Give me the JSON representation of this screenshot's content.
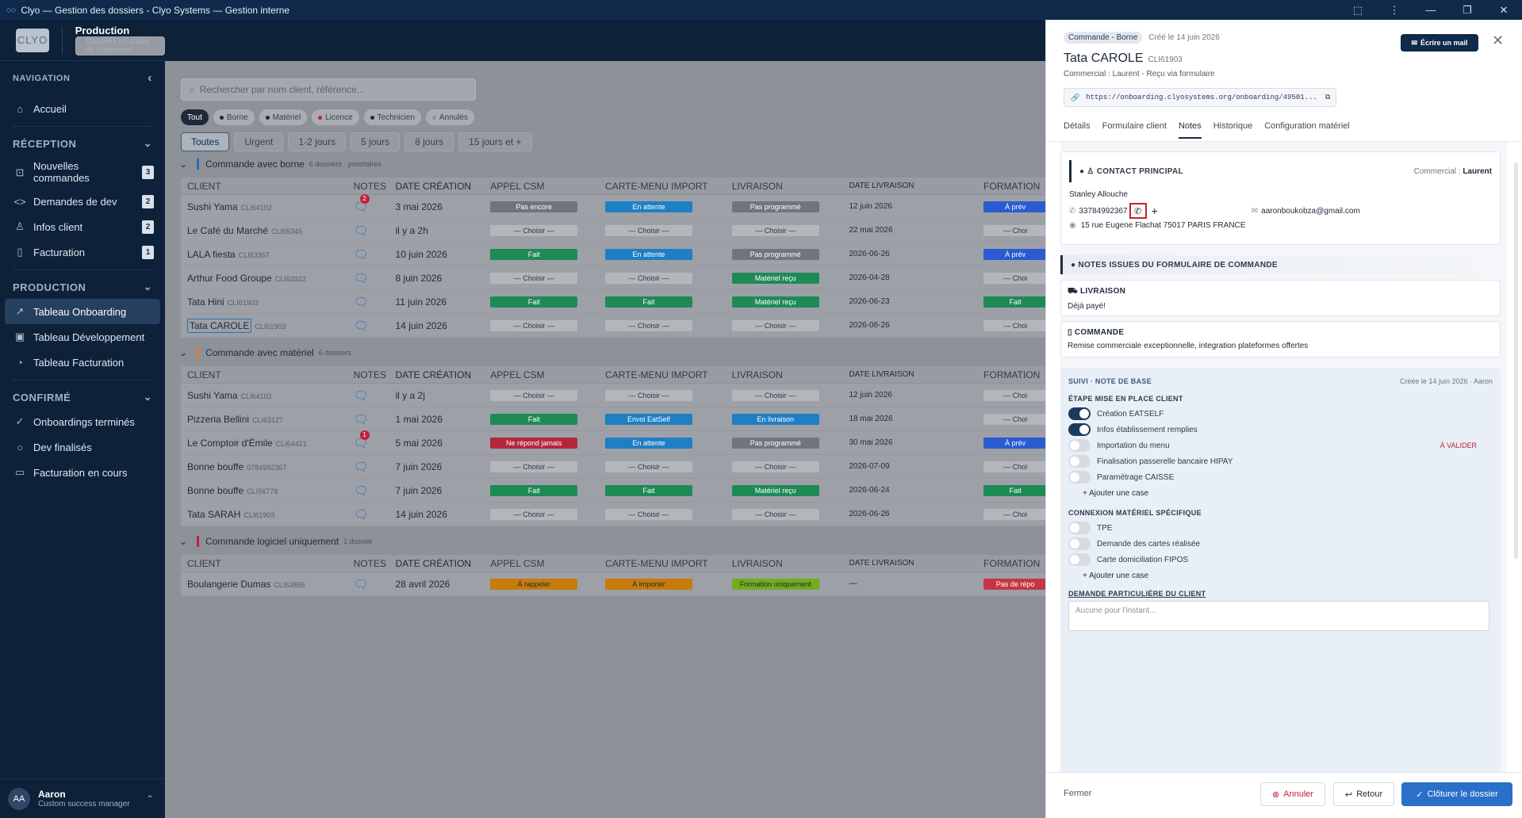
{
  "window": {
    "title": "Clyo — Gestion des dossiers - Clyo Systems — Gestion interne"
  },
  "brand": {
    "logo": "CLYO",
    "title": "Production",
    "subtitle": "Dossiers en cours de traitement"
  },
  "sidebar": {
    "nav_label": "NAVIGATION",
    "home": "Accueil",
    "sections": [
      {
        "label": "RÉCEPTION",
        "items": [
          {
            "label": "Nouvelles commandes",
            "badge": "3"
          },
          {
            "label": "Demandes de dev",
            "badge": "2"
          },
          {
            "label": "Infos client",
            "badge": "2"
          },
          {
            "label": "Facturation",
            "badge": "1"
          }
        ]
      },
      {
        "label": "PRODUCTION",
        "items": [
          {
            "label": "Tableau Onboarding"
          },
          {
            "label": "Tableau Développement"
          },
          {
            "label": "Tableau Facturation"
          }
        ]
      },
      {
        "label": "CONFIRMÉ",
        "items": [
          {
            "label": "Onboardings terminés"
          },
          {
            "label": "Dev finalisés"
          },
          {
            "label": "Facturation en cours"
          }
        ]
      }
    ],
    "user": {
      "initials": "AA",
      "name": "Aaron",
      "role": "Custom success manager"
    }
  },
  "search": {
    "placeholder": "Rechercher par nom client, référence..."
  },
  "chips": [
    "Tout",
    "Borne",
    "Matériel",
    "Licence",
    "Technicien",
    "Annulés"
  ],
  "chip_colors": [
    "#1e2a3a",
    "#1e2a3a",
    "#1e2a3a",
    "#c3203c",
    "#1e2a3a",
    "#8a9099"
  ],
  "period_tabs": [
    "Toutes",
    "Urgent",
    "1-2 jours",
    "5 jours",
    "8 jours",
    "15 jours et +"
  ],
  "columns": [
    "CLIENT",
    "NOTES",
    "DATE CRÉATION",
    "APPEL CSM",
    "CARTE-MENU IMPORT",
    "LIVRAISON",
    "DATE LIVRAISON",
    "FORMATION"
  ],
  "groups": [
    {
      "title": "Commande avec borne",
      "sub": "6 dossiers · prioritaires",
      "color": "#2b6cb3",
      "rows": [
        {
          "name": "Sushi Yama",
          "id": "CLI64102",
          "notes": "2",
          "date": "3 mai 2026",
          "csm": "Pas encore",
          "carte": "En attente",
          "liv": "Pas programmé",
          "dliv": "12 juin 2026",
          "form": "À prév"
        },
        {
          "name": "Le Café du Marché",
          "id": "CLI65345",
          "notes": "",
          "date": "il y a 2h",
          "csm": "— Choisir —",
          "carte": "— Choisir —",
          "liv": "— Choisir —",
          "dliv": "22 mai 2026",
          "form": "— Choi"
        },
        {
          "name": "LALA fiesta",
          "id": "CLI53357",
          "notes": "",
          "date": "10 juin 2026",
          "csm": "Fait",
          "carte": "En attente",
          "liv": "Pas programmé",
          "dliv": "2026-06-26",
          "form": "À prév"
        },
        {
          "name": "Arthur Food Groupe",
          "id": "CLI62922",
          "notes": "",
          "date": "8 juin 2026",
          "csm": "— Choisir —",
          "carte": "— Choisir —",
          "liv": "Matériel reçu",
          "dliv": "2026-04-28",
          "form": "— Choi"
        },
        {
          "name": "Tata Hini",
          "id": "CLI61903",
          "notes": "",
          "date": "11 juin 2026",
          "csm": "Fait",
          "carte": "Fait",
          "liv": "Matériel reçu",
          "dliv": "2026-06-23",
          "form": "Fait"
        },
        {
          "name": "Tata CAROLE",
          "id": "CLI61903",
          "notes": "",
          "date": "14 juin 2026",
          "csm": "— Choisir —",
          "carte": "— Choisir —",
          "liv": "— Choisir —",
          "dliv": "2026-06-26",
          "form": "— Choi"
        }
      ]
    },
    {
      "title": "Commande avec matériel",
      "sub": "6 dossiers",
      "color": "#e07a2e",
      "rows": [
        {
          "name": "Sushi Yama",
          "id": "CLI64102",
          "notes": "",
          "date": "il y a 2j",
          "csm": "— Choisir —",
          "carte": "— Choisir —",
          "liv": "— Choisir —",
          "dliv": "12 juin 2026",
          "form": "— Choi"
        },
        {
          "name": "Pizzeria Bellini",
          "id": "CLI63127",
          "notes": "",
          "date": "1 mai 2026",
          "csm": "Fait",
          "carte": "Envoi EatSelf",
          "liv": "En livraison",
          "dliv": "18 mai 2026",
          "form": "— Choi"
        },
        {
          "name": "Le Comptoir d'Émile",
          "id": "CLI64421",
          "notes": "1",
          "date": "5 mai 2026",
          "csm": "Ne répond jamais",
          "carte": "En attente",
          "liv": "Pas programmé",
          "dliv": "30 mai 2026",
          "form": "À prév"
        },
        {
          "name": "Bonne bouffe",
          "id": "0784992367",
          "notes": "",
          "date": "7 juin 2026",
          "csm": "— Choisir —",
          "carte": "— Choisir —",
          "liv": "— Choisir —",
          "dliv": "2026-07-09",
          "form": "— Choi"
        },
        {
          "name": "Bonne bouffe",
          "id": "CLI56778",
          "notes": "",
          "date": "7 juin 2026",
          "csm": "Fait",
          "carte": "Fait",
          "liv": "Matériel reçu",
          "dliv": "2026-06-24",
          "form": "Fait"
        },
        {
          "name": "Tata SARAH",
          "id": "CLI61903",
          "notes": "",
          "date": "14 juin 2026",
          "csm": "— Choisir —",
          "carte": "— Choisir —",
          "liv": "— Choisir —",
          "dliv": "2026-06-26",
          "form": "— Choi"
        }
      ]
    },
    {
      "title": "Commande logiciel uniquement",
      "sub": "1 dossier",
      "color": "#c3203c",
      "rows": [
        {
          "name": "Boulangerie Dumas",
          "id": "CLI63856",
          "notes": "",
          "date": "28 avril 2026",
          "csm": "À rappeler",
          "carte": "À importer",
          "liv": "Formation uniquement",
          "dliv": "—",
          "form": "Pas de répo"
        }
      ]
    }
  ],
  "panel": {
    "tag": "Commande - Borne",
    "created": "Créé le 14 juin 2026",
    "title": "Tata CAROLE",
    "id": "CLI61903",
    "sub": "Commercial : Laurent - Reçu via formulaire",
    "url": "https://onboarding.clyosystems.org/onboarding/49501...",
    "mail_btn": "Écrire un mail",
    "tabs": [
      "Détails",
      "Formulaire client",
      "Notes",
      "Historique",
      "Configuration matériel"
    ],
    "contact": {
      "header": "CONTACT PRINCIPAL",
      "commercial_label": "Commercial :",
      "commercial": "Laurent",
      "name": "Stanley Allouche",
      "phone": "33784992367",
      "email": "aaronboukobza@gmail.com",
      "address": "15 rue Eugene Flachat 75017 PARIS FRANCE"
    },
    "form_notes_header": "NOTES ISSUES DU FORMULAIRE DE COMMANDE",
    "livraison": {
      "title": "LIVRAISON",
      "text": "Déjà payé!"
    },
    "commande": {
      "title": "COMMANDE",
      "text": "Remise commerciale exceptionnelle, integration plateformes offertes"
    },
    "suivi": {
      "title": "SUIVI · NOTE DE BASE",
      "meta": "Créée le 14 juin 2026 · Aaron",
      "step1": "ÉTAPE MISE EN PLACE CLIENT",
      "items1": [
        {
          "label": "Création EATSELF",
          "on": true
        },
        {
          "label": "Infos établissement remplies",
          "on": true
        },
        {
          "label": "Importation du menu",
          "on": false,
          "flag": "À VALIDER"
        },
        {
          "label": "Finalisation passerelle bancaire HIPAY",
          "on": false
        },
        {
          "label": "Paramétrage CAISSE",
          "on": false
        }
      ],
      "add": "+ Ajouter une case",
      "step2": "CONNEXION MATÉRIEL SPÉCIFIQUE",
      "items2": [
        {
          "label": "TPE",
          "on": false
        },
        {
          "label": "Demande des cartes réalisée",
          "on": false
        },
        {
          "label": "Carte domiciliation FIPOS",
          "on": false
        }
      ],
      "demande": "DEMANDE PARTICULIÈRE DU CLIENT",
      "demande_placeholder": "Aucune pour l'instant..."
    },
    "footer": {
      "close": "Fermer",
      "cancel": "Annuler",
      "back": "Retour",
      "finish": "Clôturer le dossier"
    }
  }
}
